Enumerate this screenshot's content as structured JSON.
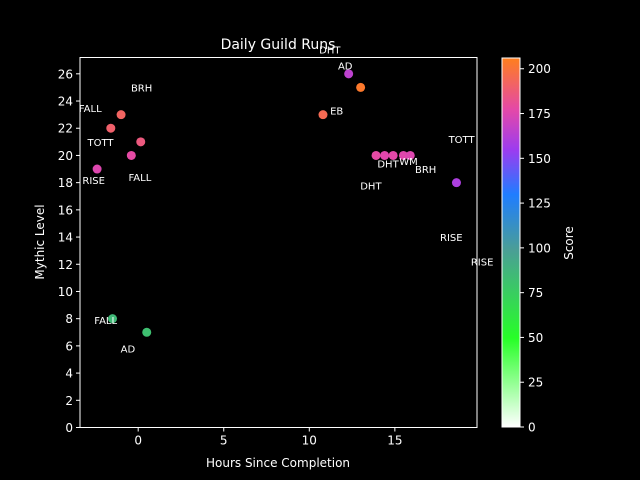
{
  "chart_data": {
    "type": "scatter",
    "title": "Daily Guild Runs",
    "xlabel": "Hours Since Completion",
    "ylabel": "Mythic Level",
    "colorbar_label": "Score",
    "xlim": [
      -3.4,
      19.8
    ],
    "ylim": [
      0,
      27.2
    ],
    "xticks": [
      0,
      5,
      10,
      15
    ],
    "yticks": [
      0,
      2,
      4,
      6,
      8,
      10,
      12,
      14,
      16,
      18,
      20,
      22,
      24,
      26
    ],
    "color_range": [
      0,
      206
    ],
    "colorbar_ticks": [
      0,
      25,
      50,
      75,
      100,
      125,
      150,
      175,
      200
    ],
    "grid": false,
    "points": [
      {
        "x": -2.4,
        "y": 19,
        "score": 175
      },
      {
        "x": -1.6,
        "y": 22,
        "score": 190
      },
      {
        "x": -1.0,
        "y": 23,
        "score": 192
      },
      {
        "x": -0.4,
        "y": 20,
        "score": 178
      },
      {
        "x": 0.15,
        "y": 21,
        "score": 186
      },
      {
        "x": -1.5,
        "y": 8,
        "score": 85
      },
      {
        "x": 0.5,
        "y": 7,
        "score": 82
      },
      {
        "x": 10.8,
        "y": 23,
        "score": 195
      },
      {
        "x": 12.3,
        "y": 26,
        "score": 165
      },
      {
        "x": 13.0,
        "y": 25,
        "score": 203
      },
      {
        "x": 13.9,
        "y": 20,
        "score": 178
      },
      {
        "x": 14.4,
        "y": 20,
        "score": 176
      },
      {
        "x": 14.9,
        "y": 20,
        "score": 177
      },
      {
        "x": 15.5,
        "y": 20,
        "score": 176
      },
      {
        "x": 15.9,
        "y": 20,
        "score": 175
      },
      {
        "x": 18.6,
        "y": 18,
        "score": 160
      }
    ],
    "annotations": [
      {
        "text": "BRH",
        "x": 0.2,
        "y": 25
      },
      {
        "text": "FALL",
        "x": -2.8,
        "y": 23.5
      },
      {
        "text": "TOTT",
        "x": -2.2,
        "y": 21
      },
      {
        "text": "RISE",
        "x": -2.6,
        "y": 18.2
      },
      {
        "text": "FALL",
        "x": 0.1,
        "y": 18.4
      },
      {
        "text": "FALL",
        "x": -1.9,
        "y": 7.9
      },
      {
        "text": "AD",
        "x": -0.6,
        "y": 5.8
      },
      {
        "text": "EB",
        "x": 11.6,
        "y": 23.3
      },
      {
        "text": "AD",
        "x": 12.1,
        "y": 26.6
      },
      {
        "text": "DHT",
        "x": 14.6,
        "y": 19.4
      },
      {
        "text": "WM",
        "x": 15.8,
        "y": 19.6
      },
      {
        "text": "BRH",
        "x": 16.8,
        "y": 19
      },
      {
        "text": "TOTT",
        "x": 18.9,
        "y": 21.2
      },
      {
        "text": "DHT",
        "x": 13.6,
        "y": 17.8
      },
      {
        "text": "RISE",
        "x": 18.3,
        "y": 14
      },
      {
        "text": "RISE",
        "x": 20.1,
        "y": 12.2
      },
      {
        "text": "DHT",
        "x": 11.2,
        "y": 27.8
      }
    ]
  }
}
